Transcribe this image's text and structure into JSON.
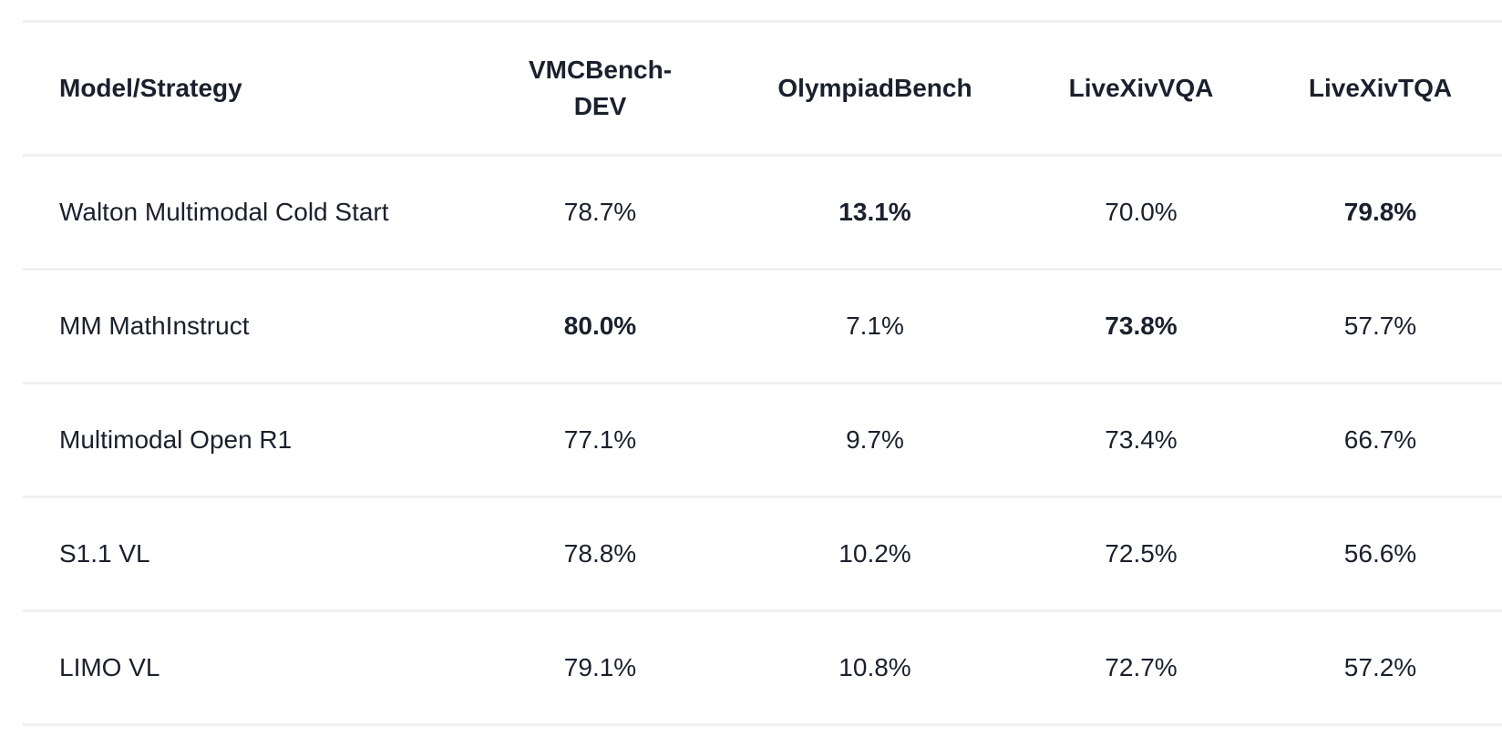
{
  "colors": {
    "text_primary": "#1a202c",
    "row_border": "#eef0f2",
    "background": "#ffffff"
  },
  "chart_data": {
    "type": "table",
    "title": "",
    "columns": [
      {
        "label": "Model/Strategy"
      },
      {
        "label": "VMCBench-DEV"
      },
      {
        "label": "OlympiadBench"
      },
      {
        "label": "LiveXivVQA"
      },
      {
        "label": "LiveXivTQA"
      }
    ],
    "rows": [
      {
        "model": "Walton Multimodal Cold Start",
        "values": [
          {
            "text": "78.7%",
            "value": 78.7,
            "bold": false
          },
          {
            "text": "13.1%",
            "value": 13.1,
            "bold": true
          },
          {
            "text": "70.0%",
            "value": 70.0,
            "bold": false
          },
          {
            "text": "79.8%",
            "value": 79.8,
            "bold": true
          }
        ]
      },
      {
        "model": "MM MathInstruct",
        "values": [
          {
            "text": "80.0%",
            "value": 80.0,
            "bold": true
          },
          {
            "text": "7.1%",
            "value": 7.1,
            "bold": false
          },
          {
            "text": "73.8%",
            "value": 73.8,
            "bold": true
          },
          {
            "text": "57.7%",
            "value": 57.7,
            "bold": false
          }
        ]
      },
      {
        "model": "Multimodal Open R1",
        "values": [
          {
            "text": "77.1%",
            "value": 77.1,
            "bold": false
          },
          {
            "text": "9.7%",
            "value": 9.7,
            "bold": false
          },
          {
            "text": "73.4%",
            "value": 73.4,
            "bold": false
          },
          {
            "text": "66.7%",
            "value": 66.7,
            "bold": false
          }
        ]
      },
      {
        "model": "S1.1 VL",
        "values": [
          {
            "text": "78.8%",
            "value": 78.8,
            "bold": false
          },
          {
            "text": "10.2%",
            "value": 10.2,
            "bold": false
          },
          {
            "text": "72.5%",
            "value": 72.5,
            "bold": false
          },
          {
            "text": "56.6%",
            "value": 56.6,
            "bold": false
          }
        ]
      },
      {
        "model": "LIMO VL",
        "values": [
          {
            "text": "79.1%",
            "value": 79.1,
            "bold": false
          },
          {
            "text": "10.8%",
            "value": 10.8,
            "bold": false
          },
          {
            "text": "72.7%",
            "value": 72.7,
            "bold": false
          },
          {
            "text": "57.2%",
            "value": 57.2,
            "bold": false
          }
        ]
      }
    ]
  }
}
